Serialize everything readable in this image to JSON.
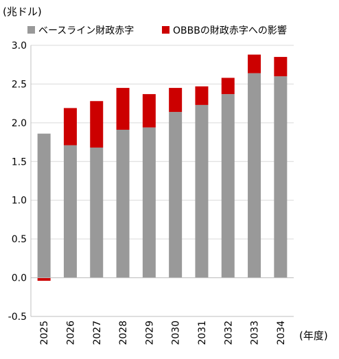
{
  "chart_data": {
    "type": "bar",
    "stacked": true,
    "ylabel": "(兆ドル)",
    "xlabel": "(年度)",
    "ylim": [
      -0.5,
      3.0
    ],
    "yticks": [
      "3.0",
      "2.5",
      "2.0",
      "1.5",
      "1.0",
      "0.5",
      "0.0",
      "-0.5"
    ],
    "ytick_values": [
      3.0,
      2.5,
      2.0,
      1.5,
      1.0,
      0.5,
      0.0,
      -0.5
    ],
    "grid": true,
    "legend_position": "top",
    "categories": [
      "2025",
      "2026",
      "2027",
      "2028",
      "2029",
      "2030",
      "2031",
      "2032",
      "2033",
      "2034"
    ],
    "series": [
      {
        "name": "ベースライン財政赤字",
        "color": "#999999",
        "values": [
          1.86,
          1.71,
          1.68,
          1.91,
          1.94,
          2.14,
          2.23,
          2.37,
          2.64,
          2.6
        ]
      },
      {
        "name": "OBBBの財政赤字への影響",
        "color": "#cc0000",
        "values": [
          -0.04,
          0.48,
          0.6,
          0.54,
          0.43,
          0.31,
          0.24,
          0.21,
          0.24,
          0.25
        ]
      }
    ]
  }
}
